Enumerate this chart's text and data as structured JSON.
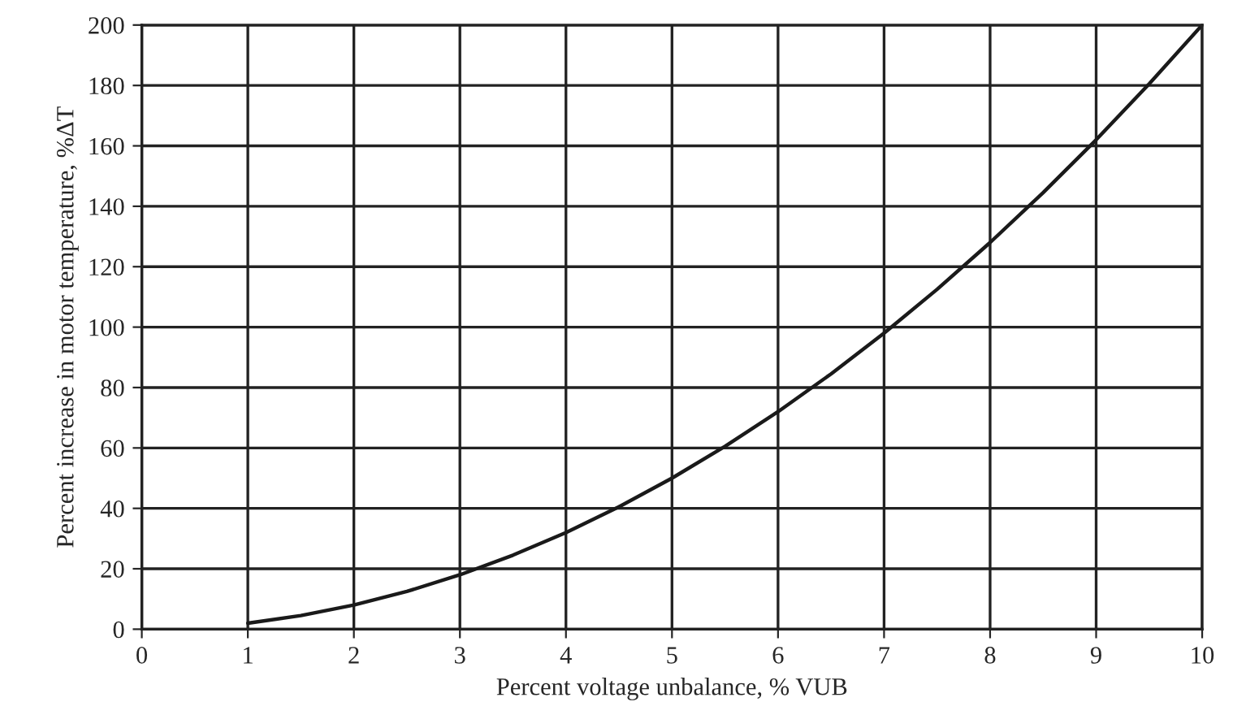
{
  "chart_data": {
    "type": "line",
    "xlabel": "Percent voltage unbalance, % VUB",
    "ylabel": "Percent increase in motor temperature, %ΔT",
    "series": [
      {
        "color": "#1a1a1a",
        "x": [
          1,
          1.5,
          2,
          2.5,
          3,
          3.5,
          4,
          4.5,
          5,
          5.5,
          6,
          6.5,
          7,
          7.5,
          8,
          8.5,
          9,
          9.5,
          10
        ],
        "values": [
          2,
          4.5,
          8,
          12.5,
          18,
          24.5,
          32,
          40.5,
          50,
          60.5,
          72,
          84.5,
          98,
          112.5,
          128,
          144.5,
          162,
          180.5,
          200
        ]
      }
    ],
    "xlim": [
      0,
      10
    ],
    "xticks": [
      0,
      1,
      2,
      3,
      4,
      5,
      6,
      7,
      8,
      9,
      10
    ],
    "ylim": [
      0,
      200
    ],
    "yticks": [
      0,
      20,
      40,
      60,
      80,
      100,
      120,
      140,
      160,
      180,
      200
    ],
    "grid": true,
    "marker": "none",
    "line_style": "solid"
  }
}
